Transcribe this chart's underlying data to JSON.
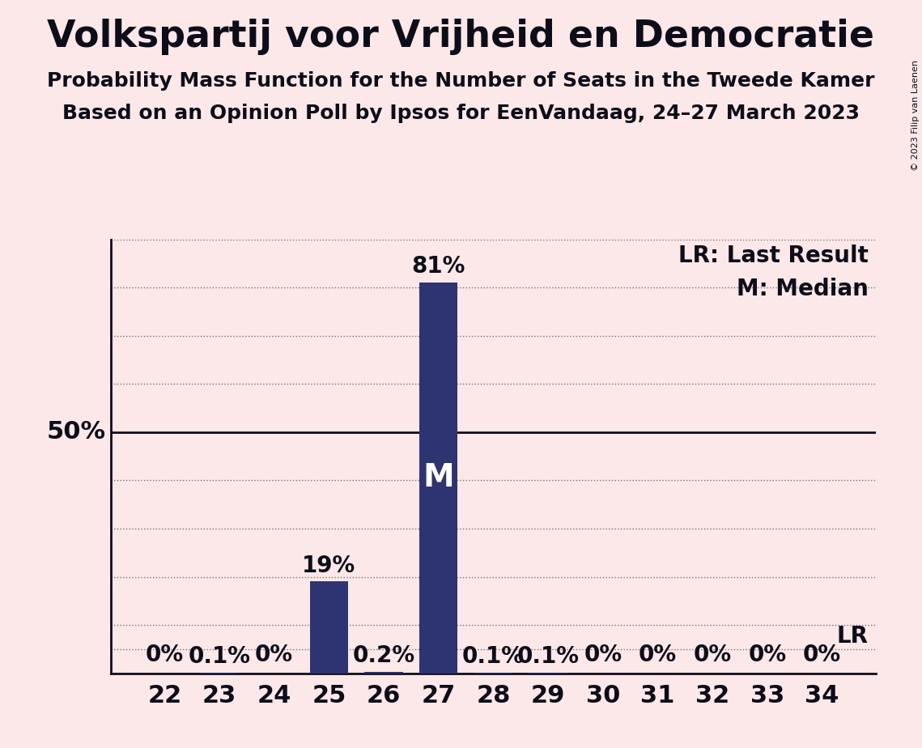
{
  "title": "Volkspartij voor Vrijheid en Democratie",
  "subtitle1": "Probability Mass Function for the Number of Seats in the Tweede Kamer",
  "subtitle2": "Based on an Opinion Poll by Ipsos for EenVandaag, 24–27 March 2023",
  "copyright": "© 2023 Filip van Laenen",
  "categories": [
    22,
    23,
    24,
    25,
    26,
    27,
    28,
    29,
    30,
    31,
    32,
    33,
    34
  ],
  "values": [
    0.0,
    0.1,
    0.0,
    19.0,
    0.2,
    81.0,
    0.1,
    0.1,
    0.0,
    0.0,
    0.0,
    0.0,
    0.0
  ],
  "bar_labels": [
    "0%",
    "0.1%",
    "0%",
    "19%",
    "0.2%",
    "81%",
    "0.1%",
    "0.1%",
    "0%",
    "0%",
    "0%",
    "0%",
    "0%"
  ],
  "bar_color": "#2e3371",
  "background_color": "#fce8e8",
  "text_color": "#0d0d1a",
  "median_seat": 27,
  "lr_value": 5.0,
  "ylim_max": 90,
  "grid_yticks": [
    10,
    20,
    30,
    40,
    60,
    70,
    80,
    90
  ],
  "solid_ytick": 50,
  "grid_color": "#555555",
  "title_fontsize": 33,
  "subtitle_fontsize": 18,
  "tick_fontsize": 22,
  "label_fontsize": 20,
  "median_label_fontsize": 28
}
